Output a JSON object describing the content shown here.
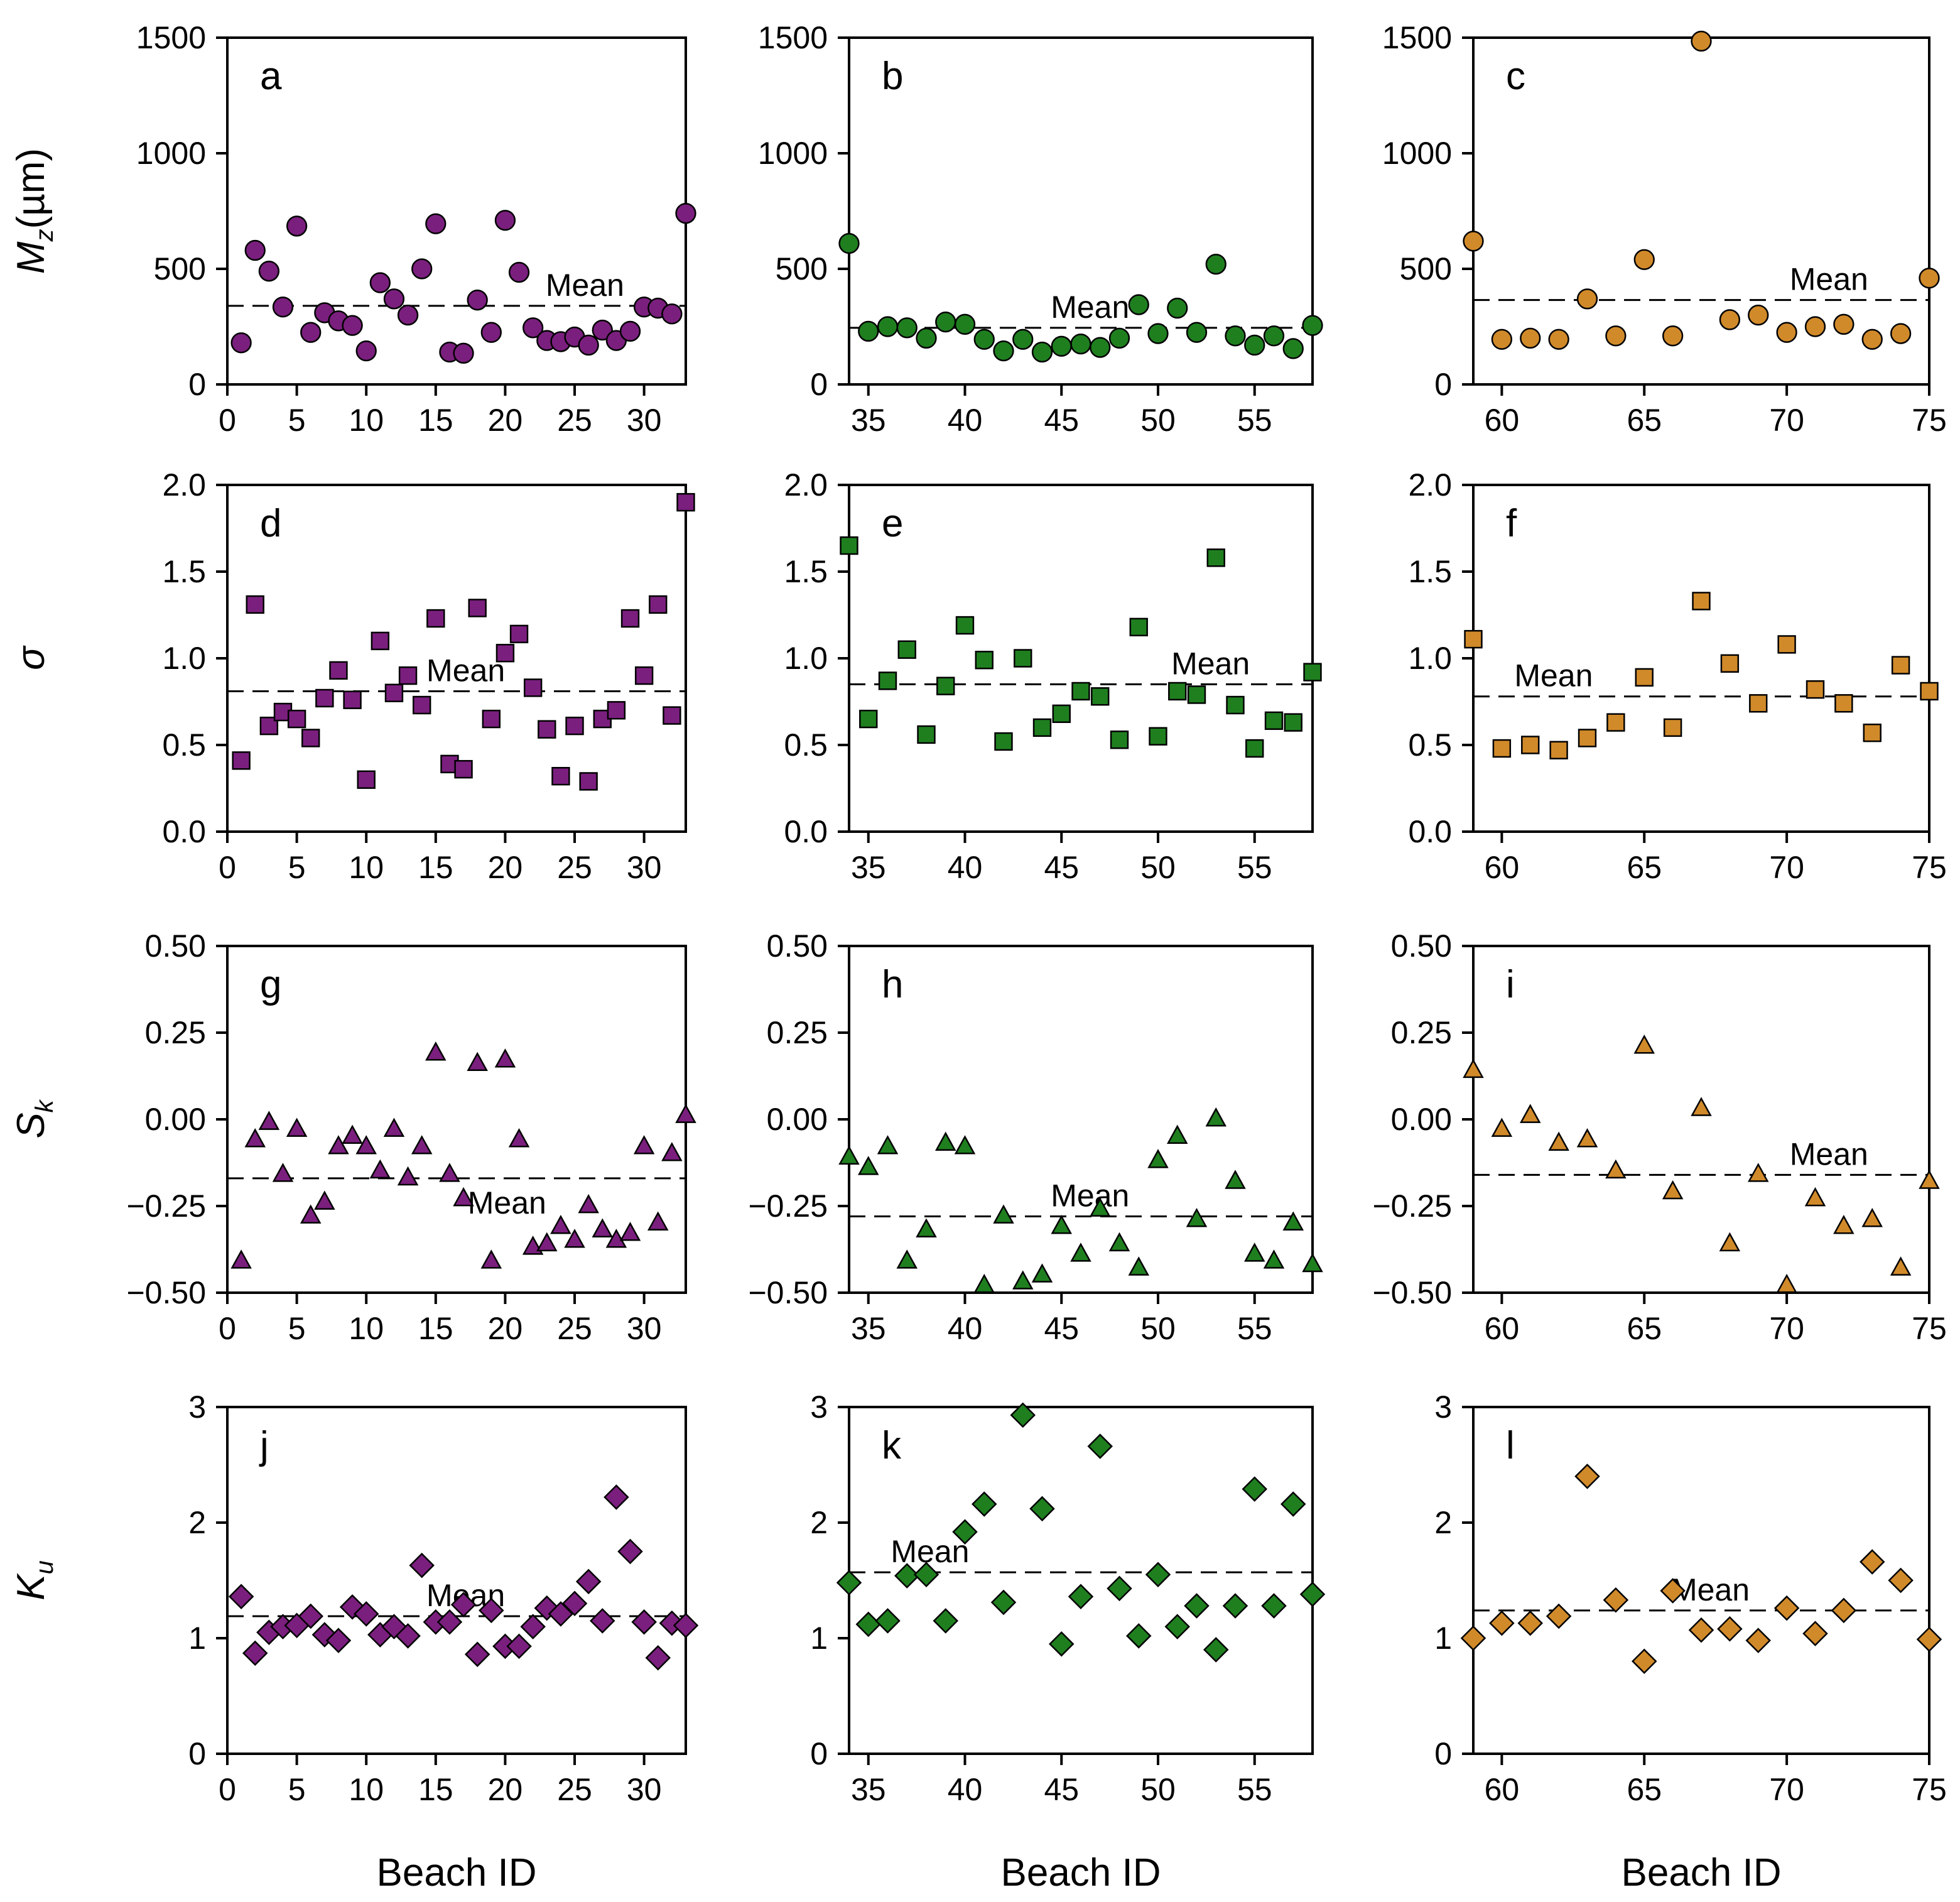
{
  "figure": {
    "x_axis_title": "Beach ID",
    "mean_label": "Mean",
    "row_y_labels": [
      {
        "main": "M",
        "sub": "z",
        "suffix": "(µm)"
      },
      {
        "main": "σ",
        "sub": "",
        "suffix": ""
      },
      {
        "main": "S",
        "sub": "k",
        "suffix": ""
      },
      {
        "main": "K",
        "sub": "u",
        "suffix": ""
      }
    ],
    "group_colors": [
      "#7B1F7E",
      "#1F7F1F",
      "#D18A2A"
    ],
    "marker_shapes": [
      "circle",
      "square",
      "triangle",
      "diamond"
    ]
  },
  "chart_data": [
    {
      "type": "scatter",
      "panel": "a",
      "x": [
        1,
        2,
        3,
        4,
        5,
        6,
        7,
        8,
        9,
        10,
        11,
        12,
        13,
        14,
        15,
        16,
        17,
        18,
        19,
        20,
        21,
        22,
        23,
        24,
        25,
        26,
        27,
        28,
        29,
        30,
        31,
        32,
        33
      ],
      "y": [
        180,
        580,
        490,
        335,
        685,
        225,
        310,
        275,
        255,
        145,
        440,
        370,
        300,
        500,
        695,
        140,
        135,
        365,
        225,
        710,
        485,
        245,
        190,
        185,
        205,
        170,
        235,
        190,
        230,
        335,
        330,
        305,
        740
      ],
      "mean": 340,
      "xlim": [
        0,
        33
      ],
      "ylim": [
        0,
        1500
      ],
      "xticks": [
        0,
        5,
        10,
        15,
        20,
        25,
        30
      ],
      "yticks": [
        0,
        500,
        1000,
        1500
      ],
      "mean_label_pos": "right",
      "series_color_index": 0,
      "marker": "circle"
    },
    {
      "type": "scatter",
      "panel": "b",
      "x": [
        34,
        35,
        36,
        37,
        38,
        39,
        40,
        41,
        42,
        43,
        44,
        45,
        46,
        47,
        48,
        49,
        50,
        51,
        52,
        53,
        54,
        55,
        56,
        57,
        58
      ],
      "y": [
        610,
        230,
        250,
        245,
        200,
        270,
        260,
        195,
        145,
        195,
        140,
        165,
        175,
        160,
        200,
        345,
        220,
        330,
        225,
        520,
        210,
        170,
        210,
        155,
        255
      ],
      "mean": 245,
      "xlim": [
        34,
        58
      ],
      "ylim": [
        0,
        1500
      ],
      "xticks": [
        35,
        40,
        45,
        50,
        55
      ],
      "yticks": [
        0,
        500,
        1000,
        1500
      ],
      "mean_label_pos": "center",
      "series_color_index": 1,
      "marker": "circle"
    },
    {
      "type": "scatter",
      "panel": "c",
      "x": [
        59,
        60,
        61,
        62,
        63,
        64,
        65,
        66,
        67,
        68,
        69,
        70,
        71,
        72,
        73,
        74,
        75
      ],
      "y": [
        620,
        195,
        200,
        195,
        370,
        210,
        540,
        210,
        1485,
        280,
        300,
        225,
        250,
        260,
        195,
        220,
        460
      ],
      "mean": 365,
      "xlim": [
        59,
        75
      ],
      "ylim": [
        0,
        1500
      ],
      "xticks": [
        60,
        65,
        70,
        75
      ],
      "yticks": [
        0,
        500,
        1000,
        1500
      ],
      "mean_label_pos": "right",
      "series_color_index": 2,
      "marker": "circle"
    },
    {
      "type": "scatter",
      "panel": "d",
      "x": [
        1,
        2,
        3,
        4,
        5,
        6,
        7,
        8,
        9,
        10,
        11,
        12,
        13,
        14,
        15,
        16,
        17,
        18,
        19,
        20,
        21,
        22,
        23,
        24,
        25,
        26,
        27,
        28,
        29,
        30,
        31,
        32,
        33
      ],
      "y": [
        0.41,
        1.31,
        0.61,
        0.69,
        0.65,
        0.54,
        0.77,
        0.93,
        0.76,
        0.3,
        1.1,
        0.8,
        0.9,
        0.73,
        1.23,
        0.39,
        0.36,
        1.29,
        0.65,
        1.03,
        1.14,
        0.83,
        0.59,
        0.32,
        0.61,
        0.29,
        0.65,
        0.7,
        1.23,
        0.9,
        1.31,
        0.67,
        1.9
      ],
      "mean": 0.81,
      "xlim": [
        0,
        33
      ],
      "ylim": [
        0,
        2
      ],
      "xticks": [
        0,
        5,
        10,
        15,
        20,
        25,
        30
      ],
      "yticks": [
        0.0,
        0.5,
        1.0,
        1.5,
        2.0
      ],
      "mean_label_pos": "center",
      "series_color_index": 0,
      "marker": "square"
    },
    {
      "type": "scatter",
      "panel": "e",
      "x": [
        34,
        35,
        36,
        37,
        38,
        39,
        40,
        41,
        42,
        43,
        44,
        45,
        46,
        47,
        48,
        49,
        50,
        51,
        52,
        53,
        54,
        55,
        56,
        57,
        58
      ],
      "y": [
        1.65,
        0.65,
        0.87,
        1.05,
        0.56,
        0.84,
        1.19,
        0.99,
        0.52,
        1.0,
        0.6,
        0.68,
        0.81,
        0.78,
        0.53,
        1.18,
        0.55,
        0.81,
        0.79,
        1.58,
        0.73,
        0.48,
        0.64,
        0.63,
        0.92
      ],
      "mean": 0.85,
      "xlim": [
        34,
        58
      ],
      "ylim": [
        0,
        2
      ],
      "xticks": [
        35,
        40,
        45,
        50,
        55
      ],
      "yticks": [
        0.0,
        0.5,
        1.0,
        1.5,
        2.0
      ],
      "mean_label_pos": "right",
      "series_color_index": 1,
      "marker": "square"
    },
    {
      "type": "scatter",
      "panel": "f",
      "x": [
        59,
        60,
        61,
        62,
        63,
        64,
        65,
        66,
        67,
        68,
        69,
        70,
        71,
        72,
        73,
        74,
        75
      ],
      "y": [
        1.11,
        0.48,
        0.5,
        0.47,
        0.54,
        0.63,
        0.89,
        0.6,
        1.33,
        0.97,
        0.74,
        1.08,
        0.82,
        0.74,
        0.57,
        0.96,
        0.81
      ],
      "mean": 0.78,
      "xlim": [
        59,
        75
      ],
      "ylim": [
        0,
        2
      ],
      "xticks": [
        60,
        65,
        70,
        75
      ],
      "yticks": [
        0.0,
        0.5,
        1.0,
        1.5,
        2.0
      ],
      "mean_label_pos": "left",
      "series_color_index": 2,
      "marker": "square"
    },
    {
      "type": "scatter",
      "panel": "g",
      "x": [
        1,
        2,
        3,
        4,
        5,
        6,
        7,
        8,
        9,
        10,
        11,
        12,
        13,
        14,
        15,
        16,
        17,
        18,
        19,
        20,
        21,
        22,
        23,
        24,
        25,
        26,
        27,
        28,
        29,
        30,
        31,
        32,
        33
      ],
      "y": [
        -0.41,
        -0.06,
        -0.01,
        -0.16,
        -0.03,
        -0.28,
        -0.24,
        -0.08,
        -0.05,
        -0.08,
        -0.15,
        -0.03,
        -0.17,
        -0.08,
        0.19,
        -0.16,
        -0.23,
        0.16,
        -0.41,
        0.17,
        -0.06,
        -0.37,
        -0.36,
        -0.31,
        -0.35,
        -0.25,
        -0.32,
        -0.35,
        -0.33,
        -0.08,
        -0.3,
        -0.1,
        0.01
      ],
      "mean": -0.17,
      "xlim": [
        0,
        33
      ],
      "ylim": [
        -0.5,
        0.5
      ],
      "xticks": [
        0,
        5,
        10,
        15,
        20,
        25,
        30
      ],
      "yticks": [
        -0.5,
        -0.25,
        0.0,
        0.25,
        0.5
      ],
      "mean_label_pos": "below",
      "series_color_index": 0,
      "marker": "triangle"
    },
    {
      "type": "scatter",
      "panel": "h",
      "x": [
        34,
        35,
        36,
        37,
        38,
        39,
        40,
        41,
        42,
        43,
        44,
        45,
        46,
        47,
        48,
        49,
        50,
        51,
        52,
        53,
        54,
        55,
        56,
        57,
        58
      ],
      "y": [
        -0.11,
        -0.14,
        -0.08,
        -0.41,
        -0.32,
        -0.07,
        -0.08,
        -0.48,
        -0.28,
        -0.47,
        -0.45,
        -0.31,
        -0.39,
        -0.26,
        -0.36,
        -0.43,
        -0.12,
        -0.05,
        -0.29,
        0.0,
        -0.18,
        -0.39,
        -0.41,
        -0.3,
        -0.42
      ],
      "mean": -0.28,
      "xlim": [
        34,
        58
      ],
      "ylim": [
        -0.5,
        0.5
      ],
      "xticks": [
        35,
        40,
        45,
        50,
        55
      ],
      "yticks": [
        -0.5,
        -0.25,
        0.0,
        0.25,
        0.5
      ],
      "mean_label_pos": "center",
      "series_color_index": 1,
      "marker": "triangle"
    },
    {
      "type": "scatter",
      "panel": "i",
      "x": [
        59,
        60,
        61,
        62,
        63,
        64,
        65,
        66,
        67,
        68,
        69,
        70,
        71,
        72,
        73,
        74,
        75
      ],
      "y": [
        0.14,
        -0.03,
        0.01,
        -0.07,
        -0.06,
        -0.15,
        0.21,
        -0.21,
        0.03,
        -0.36,
        -0.16,
        -0.48,
        -0.23,
        -0.31,
        -0.29,
        -0.43,
        -0.18
      ],
      "mean": -0.16,
      "xlim": [
        59,
        75
      ],
      "ylim": [
        -0.5,
        0.5
      ],
      "xticks": [
        60,
        65,
        70,
        75
      ],
      "yticks": [
        -0.5,
        -0.25,
        0.0,
        0.25,
        0.5
      ],
      "mean_label_pos": "right",
      "series_color_index": 2,
      "marker": "triangle"
    },
    {
      "type": "scatter",
      "panel": "j",
      "x": [
        1,
        2,
        3,
        4,
        5,
        6,
        7,
        8,
        9,
        10,
        11,
        12,
        13,
        14,
        15,
        16,
        17,
        18,
        19,
        20,
        21,
        22,
        23,
        24,
        25,
        26,
        27,
        28,
        29,
        30,
        31,
        32,
        33
      ],
      "y": [
        1.36,
        0.87,
        1.05,
        1.1,
        1.11,
        1.19,
        1.03,
        0.98,
        1.27,
        1.21,
        1.03,
        1.1,
        1.02,
        1.63,
        1.14,
        1.14,
        1.29,
        0.86,
        1.24,
        0.93,
        0.93,
        1.1,
        1.26,
        1.21,
        1.3,
        1.49,
        1.15,
        2.22,
        1.75,
        1.14,
        0.83,
        1.13,
        1.11
      ],
      "mean": 1.19,
      "xlim": [
        0,
        33
      ],
      "ylim": [
        0,
        3
      ],
      "xticks": [
        0,
        5,
        10,
        15,
        20,
        25,
        30
      ],
      "yticks": [
        0,
        1,
        2,
        3
      ],
      "mean_label_pos": "center",
      "series_color_index": 0,
      "marker": "diamond"
    },
    {
      "type": "scatter",
      "panel": "k",
      "x": [
        34,
        35,
        36,
        37,
        38,
        39,
        40,
        41,
        42,
        43,
        44,
        45,
        46,
        47,
        48,
        49,
        50,
        51,
        52,
        53,
        54,
        55,
        56,
        57,
        58
      ],
      "y": [
        1.48,
        1.12,
        1.15,
        1.54,
        1.55,
        1.15,
        1.92,
        2.16,
        1.31,
        2.93,
        2.12,
        0.95,
        1.36,
        2.66,
        1.43,
        1.02,
        1.55,
        1.1,
        1.28,
        0.9,
        1.28,
        2.29,
        1.28,
        2.16,
        1.38
      ],
      "mean": 1.57,
      "xlim": [
        34,
        58
      ],
      "ylim": [
        0,
        3
      ],
      "xticks": [
        35,
        40,
        45,
        50,
        55
      ],
      "yticks": [
        0,
        1,
        2,
        3
      ],
      "mean_label_pos": "left",
      "series_color_index": 1,
      "marker": "diamond"
    },
    {
      "type": "scatter",
      "panel": "l",
      "x": [
        59,
        60,
        61,
        62,
        63,
        64,
        65,
        66,
        67,
        68,
        69,
        70,
        71,
        72,
        73,
        74,
        75
      ],
      "y": [
        1.0,
        1.13,
        1.13,
        1.19,
        2.4,
        1.33,
        0.8,
        1.41,
        1.07,
        1.08,
        0.98,
        1.26,
        1.04,
        1.24,
        1.66,
        1.5,
        0.99
      ],
      "mean": 1.24,
      "xlim": [
        59,
        75
      ],
      "ylim": [
        0,
        3
      ],
      "xticks": [
        60,
        65,
        70,
        75
      ],
      "yticks": [
        0,
        1,
        2,
        3
      ],
      "mean_label_pos": "center",
      "series_color_index": 2,
      "marker": "diamond"
    }
  ]
}
